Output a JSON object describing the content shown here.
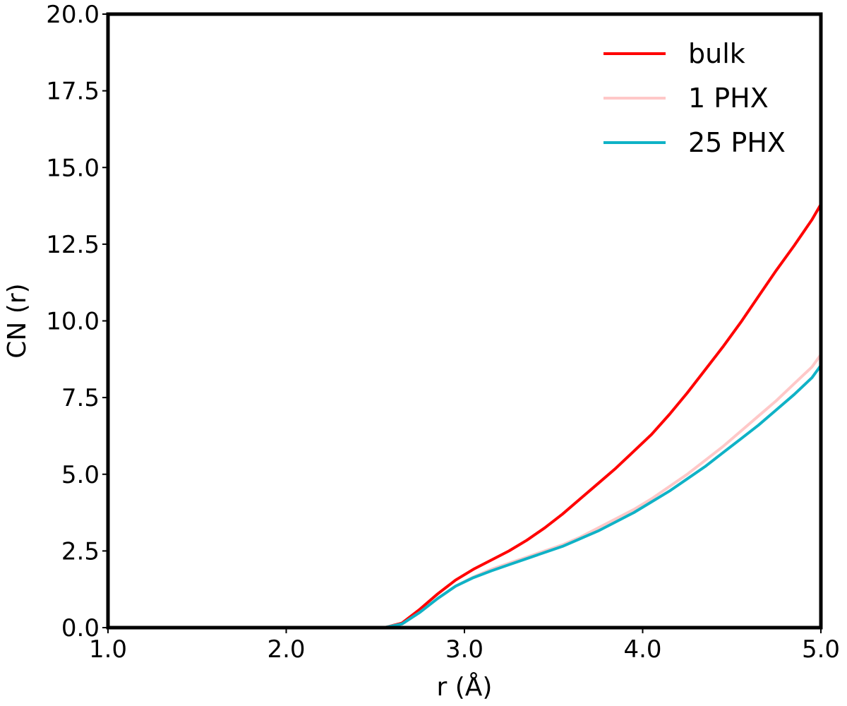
{
  "chart_data": {
    "type": "line",
    "xlabel": "r (Å)",
    "ylabel": "CN (r)",
    "xlim": [
      1.0,
      5.0
    ],
    "ylim": [
      0.0,
      20.0
    ],
    "xticks": [
      1.0,
      2.0,
      3.0,
      4.0,
      5.0
    ],
    "xtick_labels": [
      "1.0",
      "2.0",
      "3.0",
      "4.0",
      "5.0"
    ],
    "yticks": [
      0.0,
      2.5,
      5.0,
      7.5,
      10.0,
      12.5,
      15.0,
      17.5,
      20.0
    ],
    "ytick_labels": [
      "0.0",
      "2.5",
      "5.0",
      "7.5",
      "10.0",
      "12.5",
      "15.0",
      "17.5",
      "20.0"
    ],
    "grid": false,
    "legend_position": "top-right",
    "series": [
      {
        "name": "bulk",
        "color": "#ff0000",
        "x": [
          1.0,
          2.5,
          2.55,
          2.65,
          2.75,
          2.85,
          2.95,
          3.05,
          3.15,
          3.25,
          3.35,
          3.45,
          3.55,
          3.65,
          3.75,
          3.85,
          3.95,
          4.05,
          4.15,
          4.25,
          4.35,
          4.45,
          4.55,
          4.65,
          4.75,
          4.85,
          4.95,
          5.0
        ],
        "y": [
          0.0,
          0.0,
          0.0,
          0.15,
          0.6,
          1.1,
          1.55,
          1.9,
          2.2,
          2.5,
          2.85,
          3.25,
          3.7,
          4.2,
          4.7,
          5.2,
          5.75,
          6.3,
          6.95,
          7.65,
          8.4,
          9.15,
          9.95,
          10.8,
          11.65,
          12.45,
          13.3,
          13.8
        ]
      },
      {
        "name": "1 PHX",
        "color": "#ffc8c8",
        "x": [
          1.0,
          2.5,
          2.55,
          2.65,
          2.75,
          2.85,
          2.95,
          3.05,
          3.15,
          3.25,
          3.35,
          3.45,
          3.55,
          3.65,
          3.75,
          3.85,
          3.95,
          4.05,
          4.15,
          4.25,
          4.35,
          4.45,
          4.55,
          4.65,
          4.75,
          4.85,
          4.95,
          5.0
        ],
        "y": [
          0.0,
          0.0,
          0.0,
          0.12,
          0.5,
          0.95,
          1.35,
          1.65,
          1.9,
          2.1,
          2.3,
          2.5,
          2.7,
          2.95,
          3.25,
          3.55,
          3.85,
          4.2,
          4.6,
          5.0,
          5.45,
          5.9,
          6.4,
          6.9,
          7.4,
          7.95,
          8.5,
          8.9
        ]
      },
      {
        "name": "25 PHX",
        "color": "#0fb2c6",
        "x": [
          1.0,
          2.5,
          2.55,
          2.65,
          2.75,
          2.85,
          2.95,
          3.05,
          3.15,
          3.25,
          3.35,
          3.45,
          3.55,
          3.65,
          3.75,
          3.85,
          3.95,
          4.05,
          4.15,
          4.25,
          4.35,
          4.45,
          4.55,
          4.65,
          4.75,
          4.85,
          4.95,
          5.0
        ],
        "y": [
          0.0,
          0.0,
          0.0,
          0.12,
          0.5,
          0.95,
          1.35,
          1.63,
          1.85,
          2.05,
          2.25,
          2.45,
          2.65,
          2.9,
          3.15,
          3.45,
          3.75,
          4.1,
          4.45,
          4.85,
          5.25,
          5.7,
          6.15,
          6.6,
          7.1,
          7.6,
          8.15,
          8.55
        ]
      }
    ]
  }
}
